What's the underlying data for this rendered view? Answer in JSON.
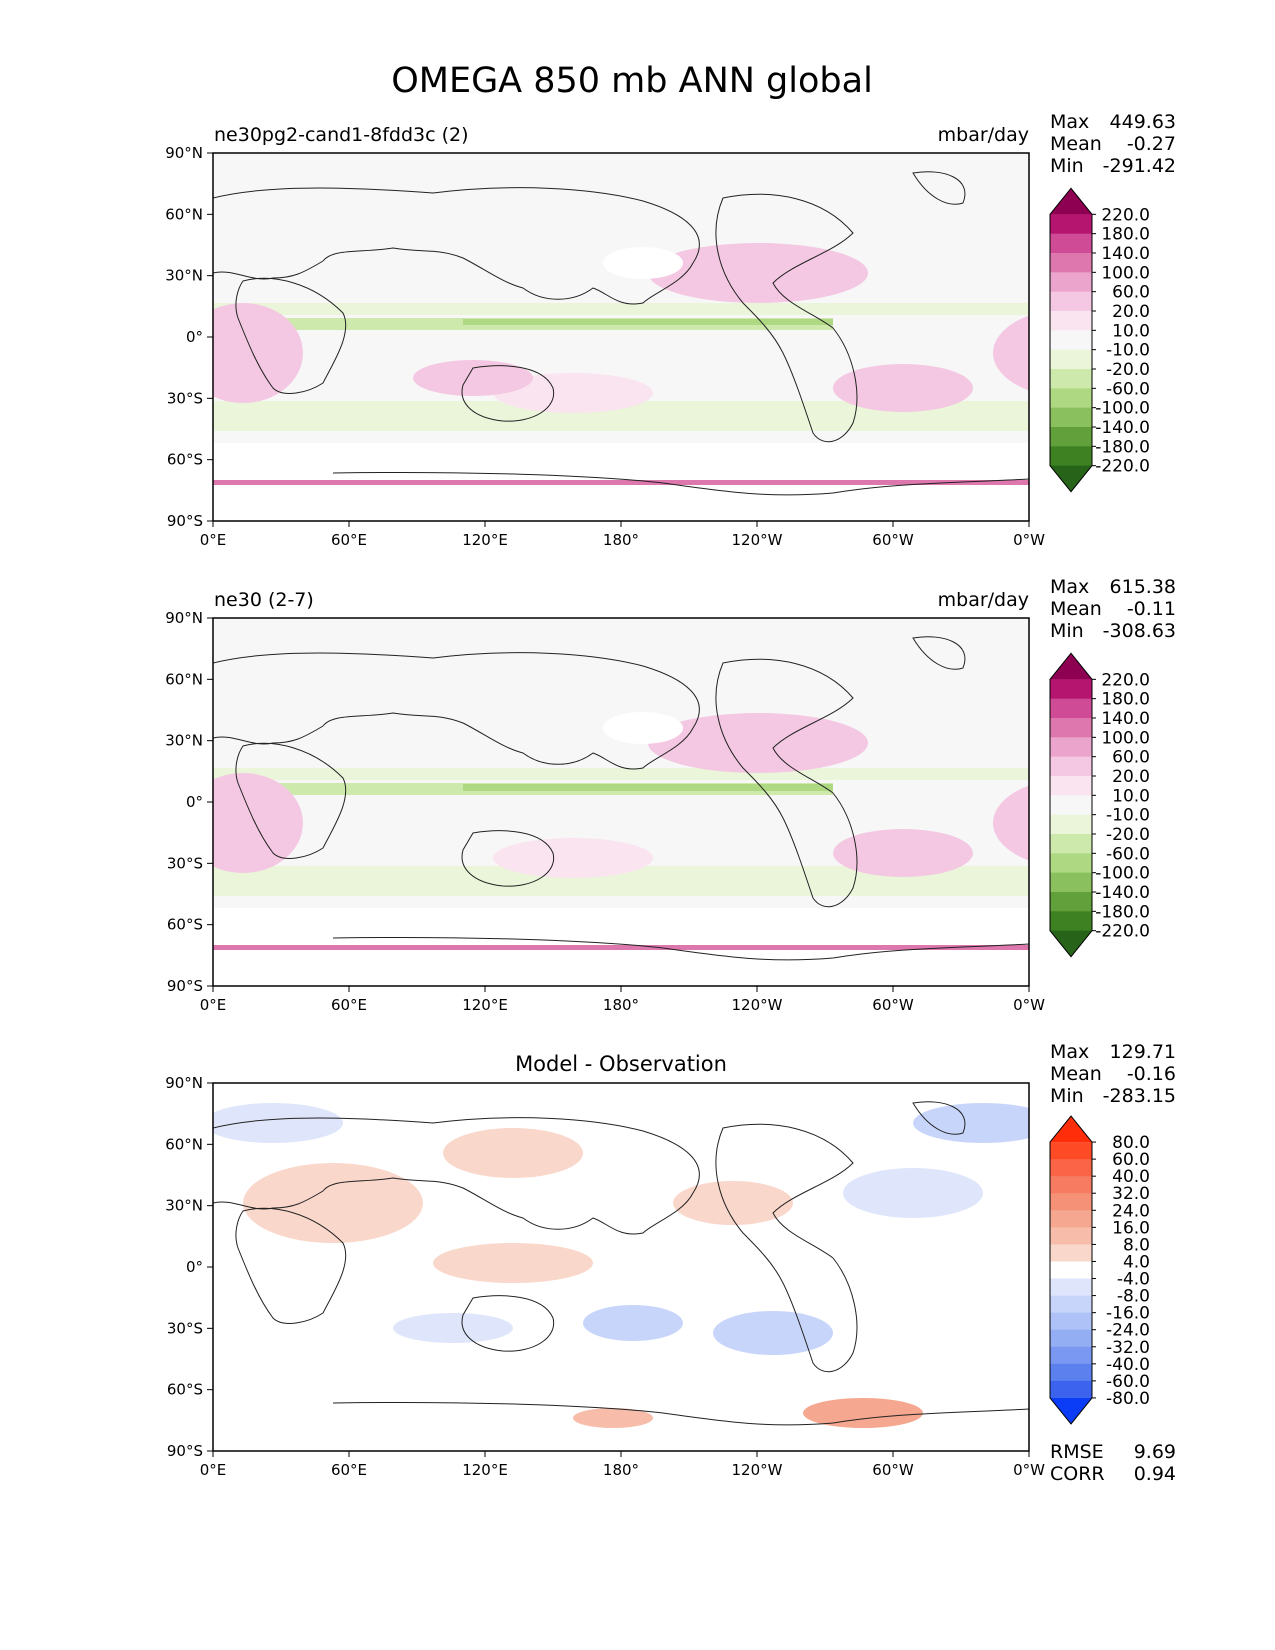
{
  "figure_title": "OMEGA 850 mb ANN global",
  "axes": {
    "lon_ticks": [
      "0°E",
      "60°E",
      "120°E",
      "180°",
      "120°W",
      "60°W",
      "0°W"
    ],
    "lat_ticks": [
      "90°N",
      "60°N",
      "30°N",
      "0°",
      "30°S",
      "60°S",
      "90°S"
    ]
  },
  "panels": [
    {
      "title_left": "ne30pg2-cand1-8fdd3c (2)",
      "title_center": "",
      "units": "mbar/day",
      "stats": [
        {
          "label": "Max",
          "value": "449.63"
        },
        {
          "label": "Mean",
          "value": "-0.27"
        },
        {
          "label": "Min",
          "value": "-291.42"
        }
      ],
      "colorbar": {
        "labels": [
          "220.0",
          "180.0",
          "140.0",
          "100.0",
          "60.0",
          "20.0",
          "10.0",
          "-10.0",
          "-20.0",
          "-60.0",
          "-100.0",
          "-140.0",
          "-180.0",
          "-220.0"
        ],
        "colors": [
          "#8e0152",
          "#b5146f",
          "#cf4b95",
          "#de77ae",
          "#eba5cc",
          "#f4c8e2",
          "#fae4ef",
          "#f7f7f7",
          "#eaf5da",
          "#cde9ac",
          "#aed882",
          "#8ac05d",
          "#62a03b",
          "#3d8123",
          "#276419"
        ]
      },
      "footer_stats": []
    },
    {
      "title_left": "ne30 (2-7)",
      "title_center": "",
      "units": "mbar/day",
      "stats": [
        {
          "label": "Max",
          "value": "615.38"
        },
        {
          "label": "Mean",
          "value": "-0.11"
        },
        {
          "label": "Min",
          "value": "-308.63"
        }
      ],
      "colorbar": {
        "labels": [
          "220.0",
          "180.0",
          "140.0",
          "100.0",
          "60.0",
          "20.0",
          "10.0",
          "-10.0",
          "-20.0",
          "-60.0",
          "-100.0",
          "-140.0",
          "-180.0",
          "-220.0"
        ],
        "colors": [
          "#8e0152",
          "#b5146f",
          "#cf4b95",
          "#de77ae",
          "#eba5cc",
          "#f4c8e2",
          "#fae4ef",
          "#f7f7f7",
          "#eaf5da",
          "#cde9ac",
          "#aed882",
          "#8ac05d",
          "#62a03b",
          "#3d8123",
          "#276419"
        ]
      },
      "footer_stats": []
    },
    {
      "title_left": "",
      "title_center": "Model - Observation",
      "units": "",
      "stats": [
        {
          "label": "Max",
          "value": "129.71"
        },
        {
          "label": "Mean",
          "value": "-0.16"
        },
        {
          "label": "Min",
          "value": "-283.15"
        }
      ],
      "colorbar": {
        "labels": [
          "80.0",
          "60.0",
          "40.0",
          "32.0",
          "24.0",
          "16.0",
          "8.0",
          "4.0",
          "-4.0",
          "-8.0",
          "-16.0",
          "-24.0",
          "-32.0",
          "-40.0",
          "-60.0",
          "-80.0"
        ],
        "colors": [
          "#ff2d0a",
          "#ff4a26",
          "#fb6446",
          "#f77b60",
          "#f59176",
          "#f5a78f",
          "#f7bdaa",
          "#fad7cb",
          "#ffffff",
          "#dfe6fb",
          "#c8d5fa",
          "#aec2f7",
          "#94aef4",
          "#7a98f1",
          "#5d80ef",
          "#3b63ee",
          "#0b3cf6"
        ]
      },
      "footer_stats": [
        {
          "label": "RMSE",
          "value": "9.69"
        },
        {
          "label": "CORR",
          "value": "0.94"
        }
      ]
    }
  ]
}
